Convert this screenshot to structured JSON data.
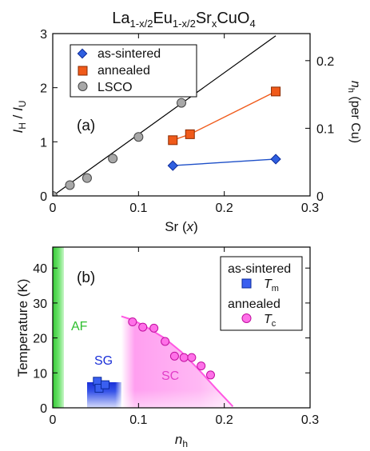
{
  "chart_data": [
    {
      "type": "scatter",
      "panel_label": "(a)",
      "title": {
        "base": "La",
        "parts": [
          {
            "t": "La",
            "sub": false
          },
          {
            "t": "1-x/2",
            "sub": true
          },
          {
            "t": "Eu",
            "sub": false
          },
          {
            "t": "1-x/2",
            "sub": true
          },
          {
            "t": "Sr",
            "sub": false
          },
          {
            "t": "x",
            "sub": true
          },
          {
            "t": "CuO",
            "sub": false
          },
          {
            "t": "4",
            "sub": true
          }
        ]
      },
      "xlabel": "Sr (x)",
      "ylabel": "I_H / I_U",
      "y2label": "n_h (per Cu)",
      "xlim": [
        0,
        0.3
      ],
      "ylim": [
        0,
        3
      ],
      "y2lim": [
        0,
        0.24
      ],
      "xticks": [
        "0",
        "0.1",
        "0.2",
        "0.3"
      ],
      "yticks": [
        "0",
        "1",
        "2",
        "3"
      ],
      "y2ticks": [
        "0",
        "0.1",
        "0.2"
      ],
      "legend_position": "top-left",
      "series": [
        {
          "name": "as-sintered",
          "marker": "diamond",
          "color": "#2f5fe0",
          "line_color": "#1d4fc8",
          "x": [
            0.14,
            0.26
          ],
          "y": [
            0.56,
            0.68
          ]
        },
        {
          "name": "annealed",
          "marker": "square",
          "color": "#f05a1a",
          "line_color": "#f05a1a",
          "x": [
            0.14,
            0.16,
            0.26
          ],
          "y": [
            1.03,
            1.14,
            1.93
          ]
        },
        {
          "name": "LSCO",
          "marker": "circle",
          "color": "#a8a8a8",
          "line_color": "#000000",
          "x": [
            0,
            0.02,
            0.04,
            0.07,
            0.1,
            0.15
          ],
          "y": [
            0.0,
            0.2,
            0.33,
            0.69,
            1.09,
            1.72
          ],
          "fit_line": {
            "x": [
              0,
              0.26
            ],
            "y": [
              0,
              2.96
            ]
          }
        }
      ]
    },
    {
      "type": "phase-diagram",
      "panel_label": "(b)",
      "xlabel": "n_h",
      "ylabel": "Temperature (K)",
      "xlim": [
        0,
        0.3
      ],
      "ylim": [
        0,
        46
      ],
      "xticks": [
        "0",
        "0.1",
        "0.2",
        "0.3"
      ],
      "yticks": [
        "0",
        "10",
        "20",
        "30",
        "40"
      ],
      "regions": [
        {
          "label": "AF",
          "color": "#3ecf3e",
          "x_range": [
            0,
            0.013
          ]
        },
        {
          "label": "SG",
          "color": "#1a33dd",
          "x_range": [
            0.04,
            0.077
          ],
          "t_max": 7
        },
        {
          "label": "SC",
          "color": "#ff88ee"
        }
      ],
      "legend": [
        {
          "group": "as-sintered",
          "symbol": "T_m",
          "marker": "square",
          "color": "#3a5ff0"
        },
        {
          "group": "annealed",
          "symbol": "T_c",
          "marker": "circle",
          "color": "#ff70e8"
        }
      ],
      "series": [
        {
          "name": "T_m",
          "marker": "square",
          "color": "#3a5ff0",
          "x": [
            0.052,
            0.054,
            0.061
          ],
          "y": [
            7.6,
            5.6,
            6.6
          ]
        },
        {
          "name": "T_c",
          "marker": "circle",
          "color": "#ff70e8",
          "x": [
            0.093,
            0.105,
            0.118,
            0.131,
            0.142,
            0.153,
            0.162,
            0.173,
            0.184
          ],
          "y": [
            24.6,
            23.1,
            22.8,
            19.0,
            14.8,
            14.4,
            14.4,
            12.0,
            9.4
          ]
        },
        {
          "name": "dome",
          "type": "curve",
          "x": [
            0.08,
            0.093,
            0.11,
            0.13,
            0.15,
            0.17,
            0.19,
            0.21
          ],
          "y": [
            26.2,
            25.2,
            23.0,
            20.0,
            16.0,
            11.0,
            5.6,
            0.4
          ]
        }
      ]
    }
  ]
}
